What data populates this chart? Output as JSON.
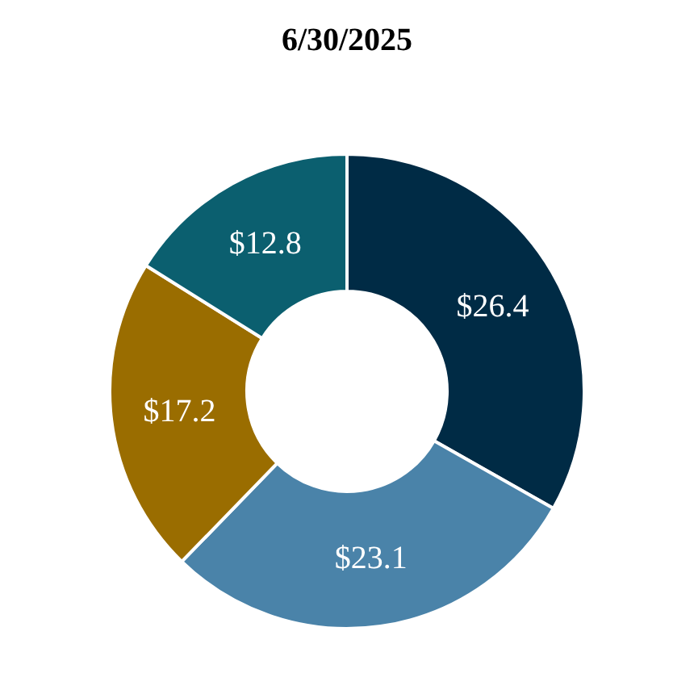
{
  "chart_data": {
    "type": "donut",
    "title": "6/30/2025",
    "categories": [
      null,
      null,
      null,
      null
    ],
    "values": [
      26.4,
      23.1,
      17.2,
      12.8
    ],
    "colors": [
      "#002b45",
      "#4a83a9",
      "#9a6d00",
      "#0b5f6f"
    ],
    "value_labels": [
      "$26.4",
      "$23.1",
      "$17.2",
      "$12.8"
    ],
    "legend": false
  }
}
